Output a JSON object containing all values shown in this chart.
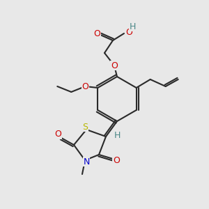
{
  "background_color": "#e8e8e8",
  "bond_color": "#2a2a2a",
  "atom_colors": {
    "O": "#cc0000",
    "N": "#0000cc",
    "S": "#b8b800",
    "H_teal": "#4a8888",
    "C": "#2a2a2a"
  },
  "figsize": [
    3.0,
    3.0
  ],
  "dpi": 100
}
